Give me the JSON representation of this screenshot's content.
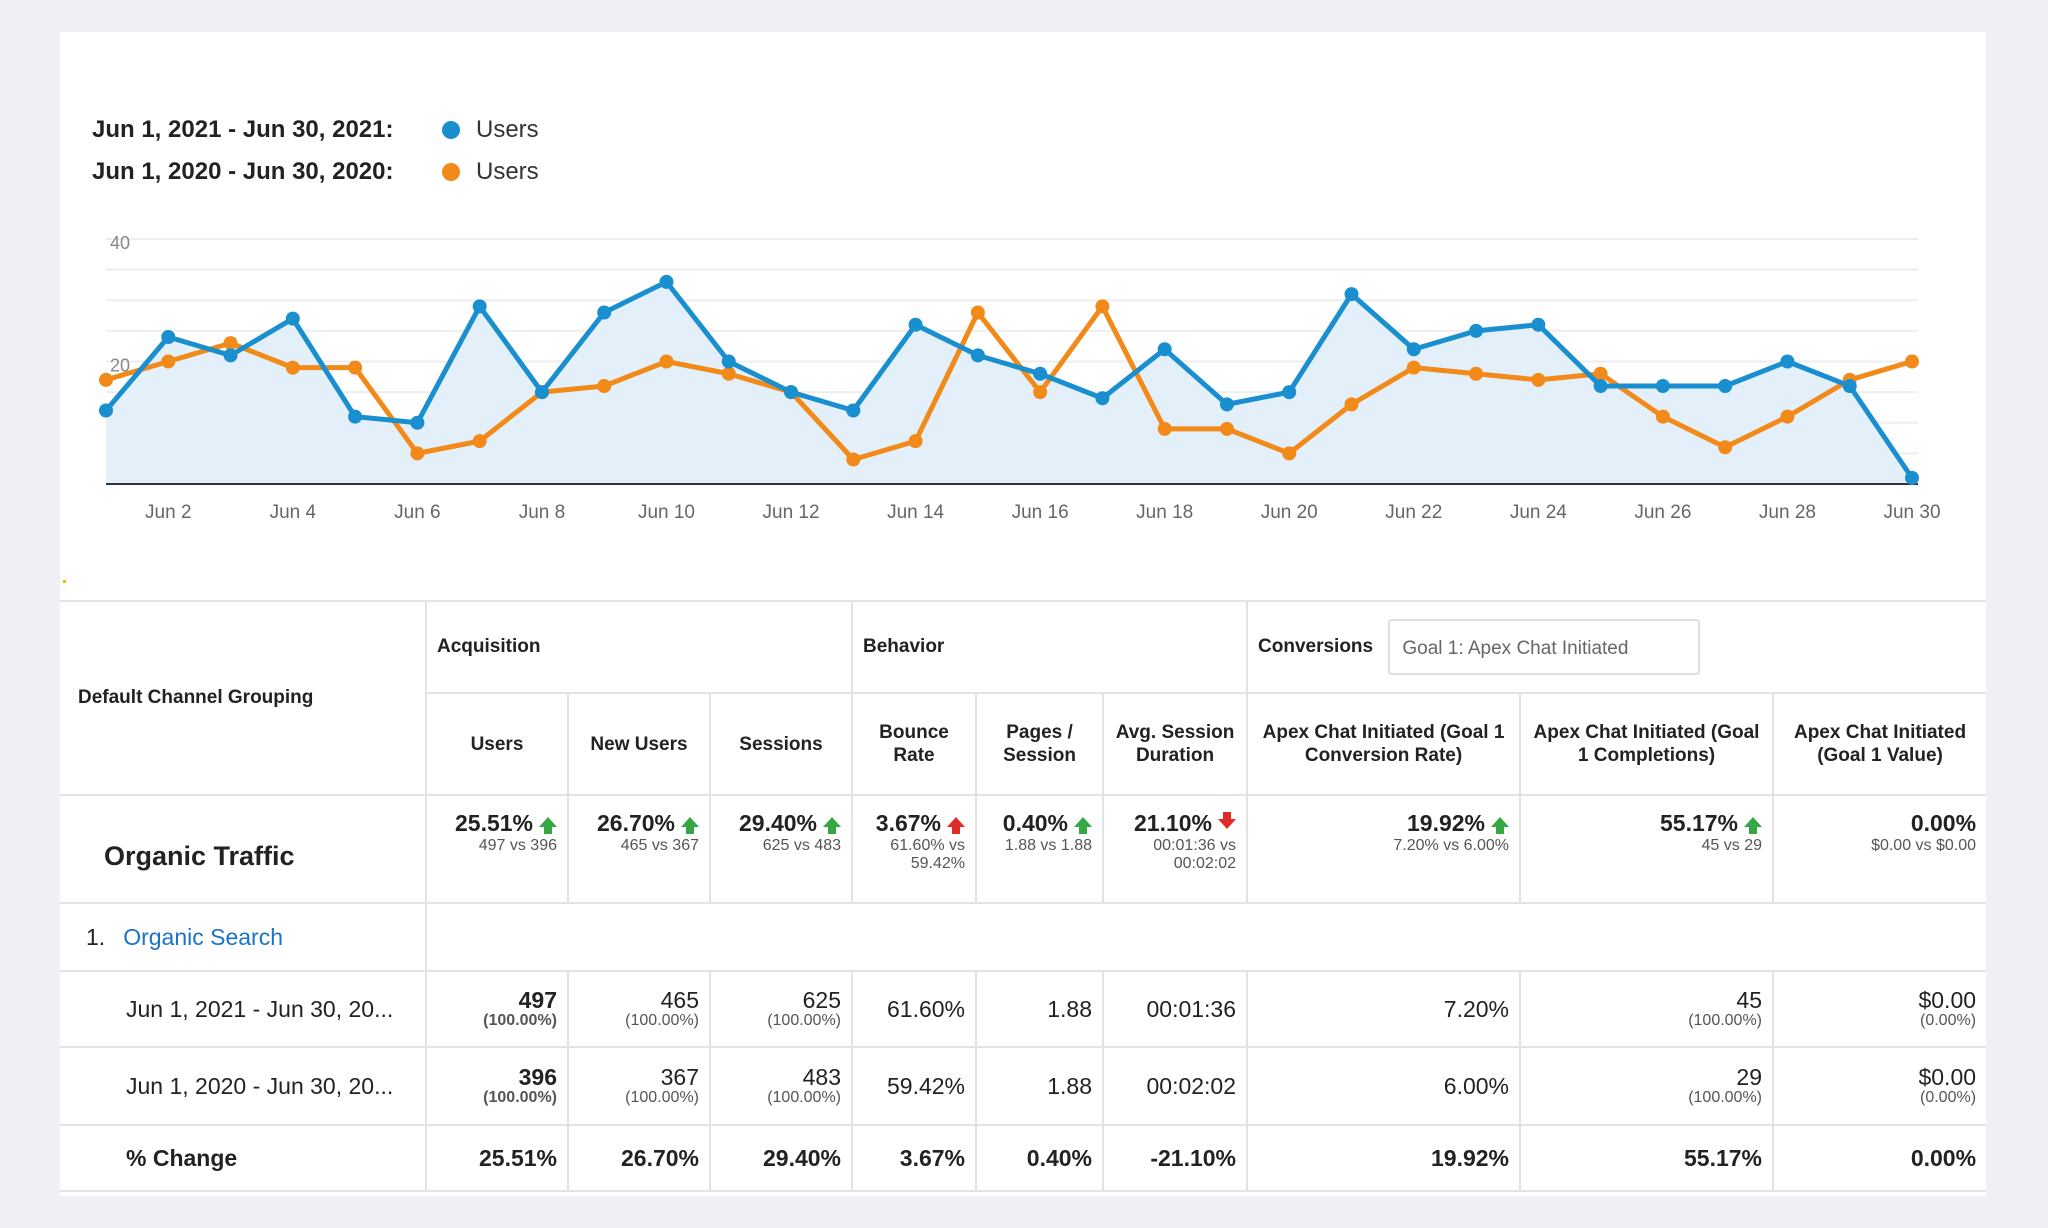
{
  "legend": [
    {
      "range": "Jun 1, 2021 - Jun 30, 2021:",
      "metric": "Users",
      "color": "#1a8fd0"
    },
    {
      "range": "Jun 1, 2020 - Jun 30, 2020:",
      "metric": "Users",
      "color": "#f28a1a"
    }
  ],
  "chart_data": {
    "type": "area",
    "x": [
      "Jun 1",
      "Jun 2",
      "Jun 3",
      "Jun 4",
      "Jun 5",
      "Jun 6",
      "Jun 7",
      "Jun 8",
      "Jun 9",
      "Jun 10",
      "Jun 11",
      "Jun 12",
      "Jun 13",
      "Jun 14",
      "Jun 15",
      "Jun 16",
      "Jun 17",
      "Jun 18",
      "Jun 19",
      "Jun 20",
      "Jun 21",
      "Jun 22",
      "Jun 23",
      "Jun 24",
      "Jun 25",
      "Jun 26",
      "Jun 27",
      "Jun 28",
      "Jun 29",
      "Jun 30"
    ],
    "tick_labels": [
      "Jun 2",
      "Jun 4",
      "Jun 6",
      "Jun 8",
      "Jun 10",
      "Jun 12",
      "Jun 14",
      "Jun 16",
      "Jun 18",
      "Jun 20",
      "Jun 22",
      "Jun 24",
      "Jun 26",
      "Jun 28",
      "Jun 30"
    ],
    "y_ticks": [
      "40",
      "20"
    ],
    "ylim": [
      0,
      40
    ],
    "grid": true,
    "legend_position": "top-left",
    "series": [
      {
        "name": "Users",
        "color": "#1a8fd0",
        "values": [
          12,
          24,
          21,
          27,
          11,
          10,
          29,
          15,
          28,
          33,
          20,
          15,
          12,
          26,
          21,
          18,
          14,
          22,
          13,
          15,
          31,
          22,
          25,
          26,
          16,
          16,
          16,
          20,
          16,
          1
        ]
      },
      {
        "name": "Users",
        "color": "#f28a1a",
        "values": [
          17,
          20,
          23,
          19,
          19,
          5,
          7,
          15,
          16,
          20,
          18,
          15,
          4,
          7,
          28,
          15,
          29,
          9,
          9,
          5,
          13,
          19,
          18,
          17,
          18,
          11,
          6,
          11,
          17,
          20
        ]
      }
    ]
  },
  "table": {
    "channel_header": "Default Channel Grouping",
    "groups": {
      "acquisition": "Acquisition",
      "behavior": "Behavior",
      "conversions": "Conversions",
      "goal_select": "Goal 1: Apex Chat Initiated"
    },
    "columns": [
      "Users",
      "New Users",
      "Sessions",
      "Bounce Rate",
      "Pages / Session",
      "Avg. Session Duration",
      "Apex Chat Initiated (Goal 1 Conversion Rate)",
      "Apex Chat Initiated (Goal 1 Completions)",
      "Apex Chat Initiated (Goal 1 Value)"
    ],
    "summary": {
      "title": "Organic Traffic",
      "cells": [
        {
          "pct": "25.51%",
          "cmp": "497 vs 396",
          "dir": "up"
        },
        {
          "pct": "26.70%",
          "cmp": "465 vs 367",
          "dir": "up"
        },
        {
          "pct": "29.40%",
          "cmp": "625 vs 483",
          "dir": "up"
        },
        {
          "pct": "3.67%",
          "cmp": "61.60% vs 59.42%",
          "dir": "up-bad"
        },
        {
          "pct": "0.40%",
          "cmp": "1.88 vs 1.88",
          "dir": "up"
        },
        {
          "pct": "21.10%",
          "cmp": "00:01:36 vs 00:02:02",
          "dir": "down"
        },
        {
          "pct": "19.92%",
          "cmp": "7.20% vs 6.00%",
          "dir": "up"
        },
        {
          "pct": "55.17%",
          "cmp": "45 vs 29",
          "dir": "up"
        },
        {
          "pct": "0.00%",
          "cmp": "$0.00 vs $0.00",
          "dir": "none"
        }
      ]
    },
    "channel": {
      "index": "1.",
      "name": "Organic Search"
    },
    "rows": [
      {
        "label": "Jun 1, 2021 - Jun 30, 20...",
        "cells": [
          {
            "v": "497",
            "s": "(100.00%)"
          },
          {
            "v": "465",
            "s": "(100.00%)"
          },
          {
            "v": "625",
            "s": "(100.00%)"
          },
          {
            "v": "61.60%",
            "s": ""
          },
          {
            "v": "1.88",
            "s": ""
          },
          {
            "v": "00:01:36",
            "s": ""
          },
          {
            "v": "7.20%",
            "s": ""
          },
          {
            "v": "45",
            "s": "(100.00%)"
          },
          {
            "v": "$0.00",
            "s": "(0.00%)"
          }
        ]
      },
      {
        "label": "Jun 1, 2020 - Jun 30, 20...",
        "cells": [
          {
            "v": "396",
            "s": "(100.00%)"
          },
          {
            "v": "367",
            "s": "(100.00%)"
          },
          {
            "v": "483",
            "s": "(100.00%)"
          },
          {
            "v": "59.42%",
            "s": ""
          },
          {
            "v": "1.88",
            "s": ""
          },
          {
            "v": "00:02:02",
            "s": ""
          },
          {
            "v": "6.00%",
            "s": ""
          },
          {
            "v": "29",
            "s": "(100.00%)"
          },
          {
            "v": "$0.00",
            "s": "(0.00%)"
          }
        ]
      }
    ],
    "change": {
      "label": "% Change",
      "values": [
        "25.51%",
        "26.70%",
        "29.40%",
        "3.67%",
        "0.40%",
        "-21.10%",
        "19.92%",
        "55.17%",
        "0.00%"
      ]
    }
  }
}
